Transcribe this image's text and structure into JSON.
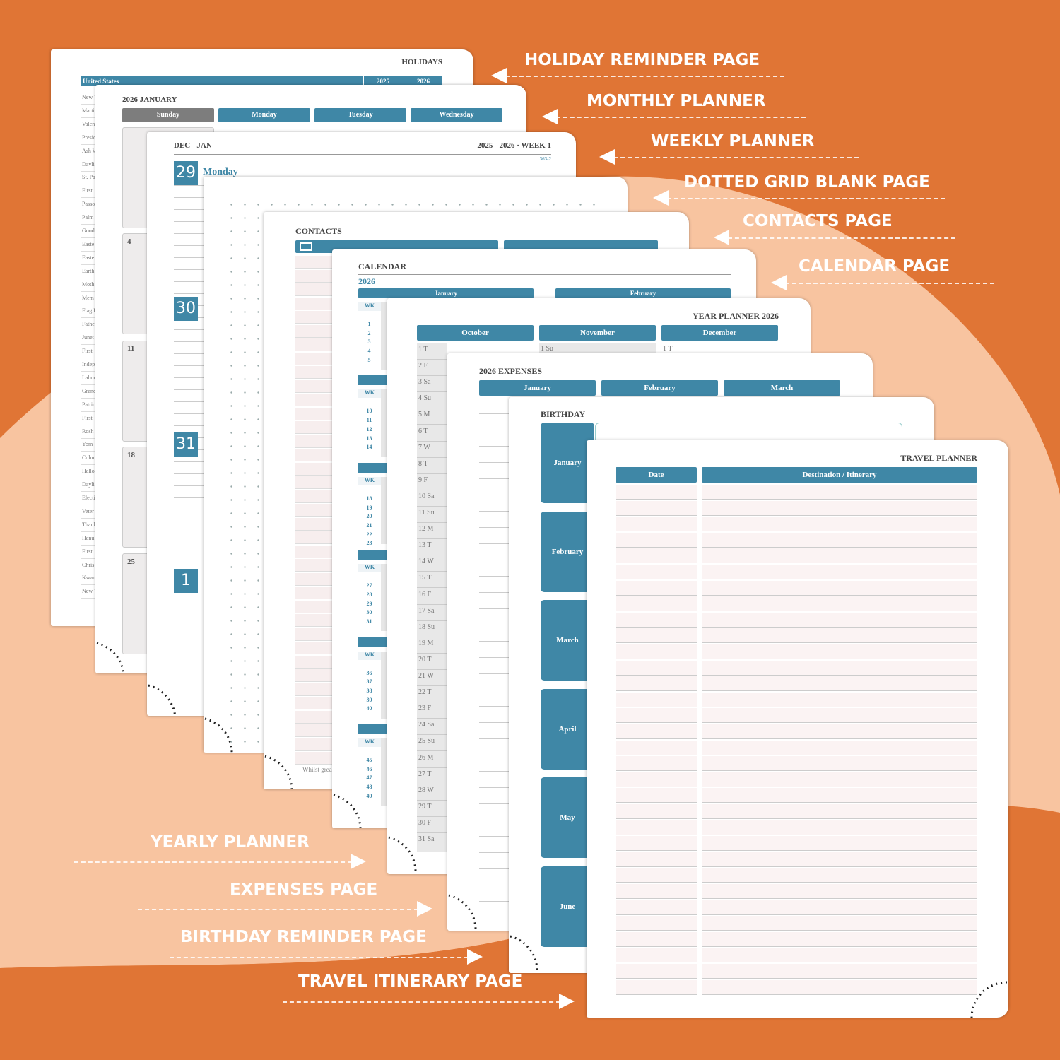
{
  "labels_right": [
    "HOLIDAY REMINDER PAGE",
    "MONTHLY PLANNER",
    "WEEKLY PLANNER",
    "DOTTED GRID BLANK PAGE",
    "CONTACTS PAGE",
    "CALENDAR PAGE"
  ],
  "labels_left": [
    "YEARLY PLANNER",
    "EXPENSES PAGE",
    "BIRTHDAY REMINDER PAGE",
    "TRAVEL ITINERARY PAGE"
  ],
  "holidays": {
    "title": "HOLIDAYS",
    "country": "United States",
    "years": [
      "2025",
      "2026"
    ],
    "rows": [
      "New Y",
      "Marti",
      "Valen",
      "Presic",
      "Ash W",
      "Dayli",
      "St. Pa",
      "First",
      "Passo",
      "Palm S",
      "Good",
      "Easte",
      "Easte",
      "Earth",
      "Moth",
      "Mem",
      "Flag I",
      "Fathe",
      "Junet",
      "First",
      "Indep",
      "Labor",
      "Grand",
      "Patric",
      "First",
      "Rosh",
      "Yom",
      "Colun",
      "Hallo",
      "Dayli",
      "Electi",
      "Veter",
      "Thank",
      "Hanu",
      "First",
      "Chris",
      "Kwan",
      "New Y"
    ]
  },
  "monthly": {
    "title": "2026 JANUARY",
    "days": [
      "Sunday",
      "Monday",
      "Tuesday",
      "Wednesday"
    ],
    "dates": [
      "4",
      "11",
      "18",
      "25"
    ]
  },
  "weekly": {
    "range": "DEC - JAN",
    "week": "2025 - 2026 · WEEK 1",
    "day_count": "363-2",
    "day_name": "Monday",
    "day_numbers": [
      "29",
      "30",
      "31",
      "1"
    ]
  },
  "contacts": {
    "title": "CONTACTS",
    "note": "Whilst grea"
  },
  "calendar": {
    "title": "CALENDAR",
    "year": "2026",
    "months": [
      "January",
      "February"
    ],
    "wk_label": "WK",
    "weeks": [
      [
        "1",
        "2",
        "3",
        "4",
        "5"
      ],
      [
        "10",
        "11",
        "12",
        "13",
        "14"
      ],
      [
        "18",
        "19",
        "20",
        "21",
        "22",
        "23"
      ],
      [
        "27",
        "28",
        "29",
        "30",
        "31"
      ],
      [
        "36",
        "37",
        "38",
        "39",
        "40"
      ],
      [
        "45",
        "46",
        "47",
        "48",
        "49"
      ]
    ]
  },
  "year_planner": {
    "title": "YEAR PLANNER 2026",
    "months": [
      "October",
      "November",
      "December"
    ],
    "october": [
      "1 T",
      "2 F",
      "3 Sa",
      "4 Su",
      "5 M",
      "6 T",
      "7 W",
      "8 T",
      "9 F",
      "10 Sa",
      "11 Su",
      "12 M",
      "13 T",
      "14 W",
      "15 T",
      "16 F",
      "17 Sa",
      "18 Su",
      "19 M",
      "20 T",
      "21 W",
      "22 T",
      "23 F",
      "24 Sa",
      "25 Su",
      "26 M",
      "27 T",
      "28 W",
      "29 T",
      "30 F",
      "31 Sa"
    ],
    "november_first": "1 Su",
    "december_first": "1 T"
  },
  "expenses": {
    "title": "2026 EXPENSES",
    "months": [
      "January",
      "February",
      "March"
    ]
  },
  "birthday": {
    "title": "BIRTHDAY",
    "months": [
      "January",
      "February",
      "March",
      "April",
      "May",
      "June"
    ]
  },
  "travel": {
    "title": "TRAVEL PLANNER",
    "columns": [
      "Date",
      "Destination / Itinerary"
    ]
  }
}
